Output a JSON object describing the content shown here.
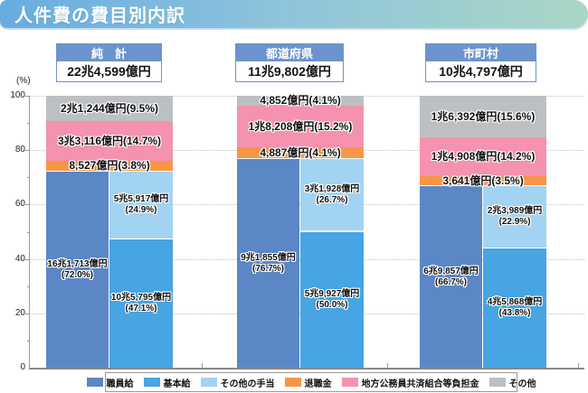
{
  "page_title": "人件費の費目別内訳",
  "y_axis": {
    "unit_label": "(%)",
    "ticks": [
      100,
      80,
      60,
      40,
      20,
      0
    ]
  },
  "colors": {
    "banner_start": "#68ace0",
    "banner_end": "#a9d7c5",
    "header_blue": "#6b94ce",
    "shokuin": "#5b87c6",
    "kihon": "#46a5e2",
    "teate": "#a3d3f2",
    "taishoku": "#f79646",
    "kyosai": "#f492b0",
    "sonota": "#bcc0c3"
  },
  "legend": [
    {
      "key": "shokuin",
      "label": "職員給"
    },
    {
      "key": "kihon",
      "label": "基本給"
    },
    {
      "key": "teate",
      "label": "その他の手当"
    },
    {
      "key": "taishoku",
      "label": "退職金"
    },
    {
      "key": "kyosai",
      "label": "地方公務員共済組合等負担金"
    },
    {
      "key": "sonota",
      "label": "その他"
    }
  ],
  "chart_data": {
    "type": "bar",
    "subtype": "stacked-percentage-with-sub-breakdown",
    "title": "人件費の費目別内訳",
    "ylabel": "(%)",
    "ylim": [
      0,
      100
    ],
    "grid": true,
    "legend_position": "bottom",
    "groups": [
      {
        "label": "純　計",
        "total": "22兆4,599億円",
        "segments": {
          "shokuin": {
            "label": "職員給",
            "amount": "16兆1,713億円",
            "pct": "72.0"
          },
          "kihon": {
            "label": "基本給",
            "amount": "10兆5,795億円",
            "pct": "47.1"
          },
          "teate": {
            "label": "その他の手当",
            "amount": "5兆5,917億円",
            "pct": "24.9"
          },
          "taishoku": {
            "label": "退職金",
            "amount": "8,527億円",
            "pct": "3.8"
          },
          "kyosai": {
            "label": "地方公務員共済組合等負担金",
            "amount": "3兆3,116億円",
            "pct": "14.7"
          },
          "sonota": {
            "label": "その他",
            "amount": "2兆1,244億円",
            "pct": "9.5"
          }
        }
      },
      {
        "label": "都道府県",
        "total": "11兆9,802億円",
        "segments": {
          "shokuin": {
            "label": "職員給",
            "amount": "9兆1,855億円",
            "pct": "76.7"
          },
          "kihon": {
            "label": "基本給",
            "amount": "5兆9,927億円",
            "pct": "50.0"
          },
          "teate": {
            "label": "その他の手当",
            "amount": "3兆1,928億円",
            "pct": "26.7"
          },
          "taishoku": {
            "label": "退職金",
            "amount": "4,887億円",
            "pct": "4.1"
          },
          "kyosai": {
            "label": "地方公務員共済組合等負担金",
            "amount": "1兆8,208億円",
            "pct": "15.2"
          },
          "sonota": {
            "label": "その他",
            "amount": "4,852億円",
            "pct": "4.1"
          }
        }
      },
      {
        "label": "市町村",
        "total": "10兆4,797億円",
        "segments": {
          "shokuin": {
            "label": "職員給",
            "amount": "6兆9,857億円",
            "pct": "66.7"
          },
          "kihon": {
            "label": "基本給",
            "amount": "4兆5,868億円",
            "pct": "43.8"
          },
          "teate": {
            "label": "その他の手当",
            "amount": "2兆3,989億円",
            "pct": "22.9"
          },
          "taishoku": {
            "label": "退職金",
            "amount": "3,641億円",
            "pct": "3.5"
          },
          "kyosai": {
            "label": "地方公務員共済組合等負担金",
            "amount": "1兆4,908億円",
            "pct": "14.2"
          },
          "sonota": {
            "label": "その他",
            "amount": "1兆6,392億円",
            "pct": "15.6"
          }
        }
      }
    ]
  }
}
